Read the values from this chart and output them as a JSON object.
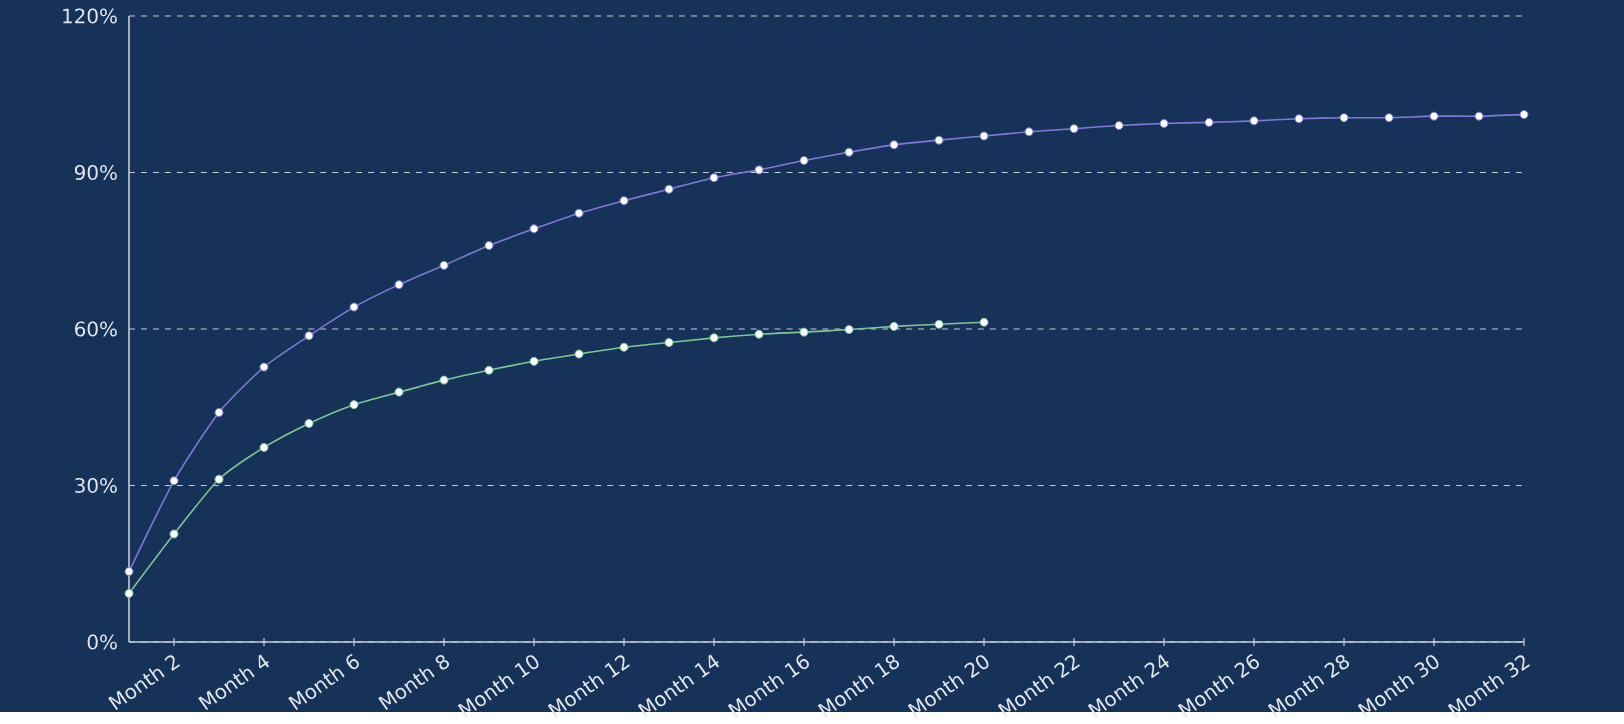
{
  "chart_data": {
    "type": "line",
    "categories": [
      null,
      "Month 2",
      null,
      "Month 4",
      null,
      "Month 6",
      null,
      "Month 8",
      null,
      "Month 10",
      null,
      "Month 12",
      null,
      "Month 14",
      null,
      "Month 16",
      null,
      "Month 18",
      null,
      "Month 20",
      null,
      "Month 22",
      null,
      "Month 24",
      null,
      "Month 26",
      null,
      "Month 28",
      null,
      "Month 30",
      null,
      "Month 32"
    ],
    "series": [
      {
        "color": "#8178d8",
        "values": [
          13.5,
          30.9,
          44.0,
          52.7,
          58.7,
          64.2,
          68.5,
          72.2,
          76.0,
          79.2,
          82.2,
          84.6,
          86.8,
          89.0,
          90.5,
          92.3,
          93.9,
          95.3,
          96.2,
          97.0,
          97.8,
          98.4,
          99.0,
          99.4,
          99.6,
          99.9,
          100.3,
          100.5,
          100.5,
          100.8,
          100.8,
          101.1
        ]
      },
      {
        "color": "#7cc894",
        "values": [
          9.3,
          20.7,
          31.2,
          37.3,
          41.9,
          45.5,
          47.9,
          50.2,
          52.1,
          53.8,
          55.2,
          56.5,
          57.4,
          58.3,
          59.0,
          59.4,
          59.9,
          60.5,
          60.9,
          61.3,
          null,
          null,
          null,
          null,
          null,
          null,
          null,
          null,
          null,
          null,
          null,
          null
        ]
      }
    ],
    "ylim": [
      0,
      120
    ],
    "yticks": [
      {
        "value": 0,
        "label": "0%"
      },
      {
        "value": 30,
        "label": "30%"
      },
      {
        "value": 60,
        "label": "60%"
      },
      {
        "value": 90,
        "label": "90%"
      },
      {
        "value": 120,
        "label": "120%"
      }
    ],
    "grid": "y",
    "marker": "circle",
    "line_style": "solid"
  }
}
